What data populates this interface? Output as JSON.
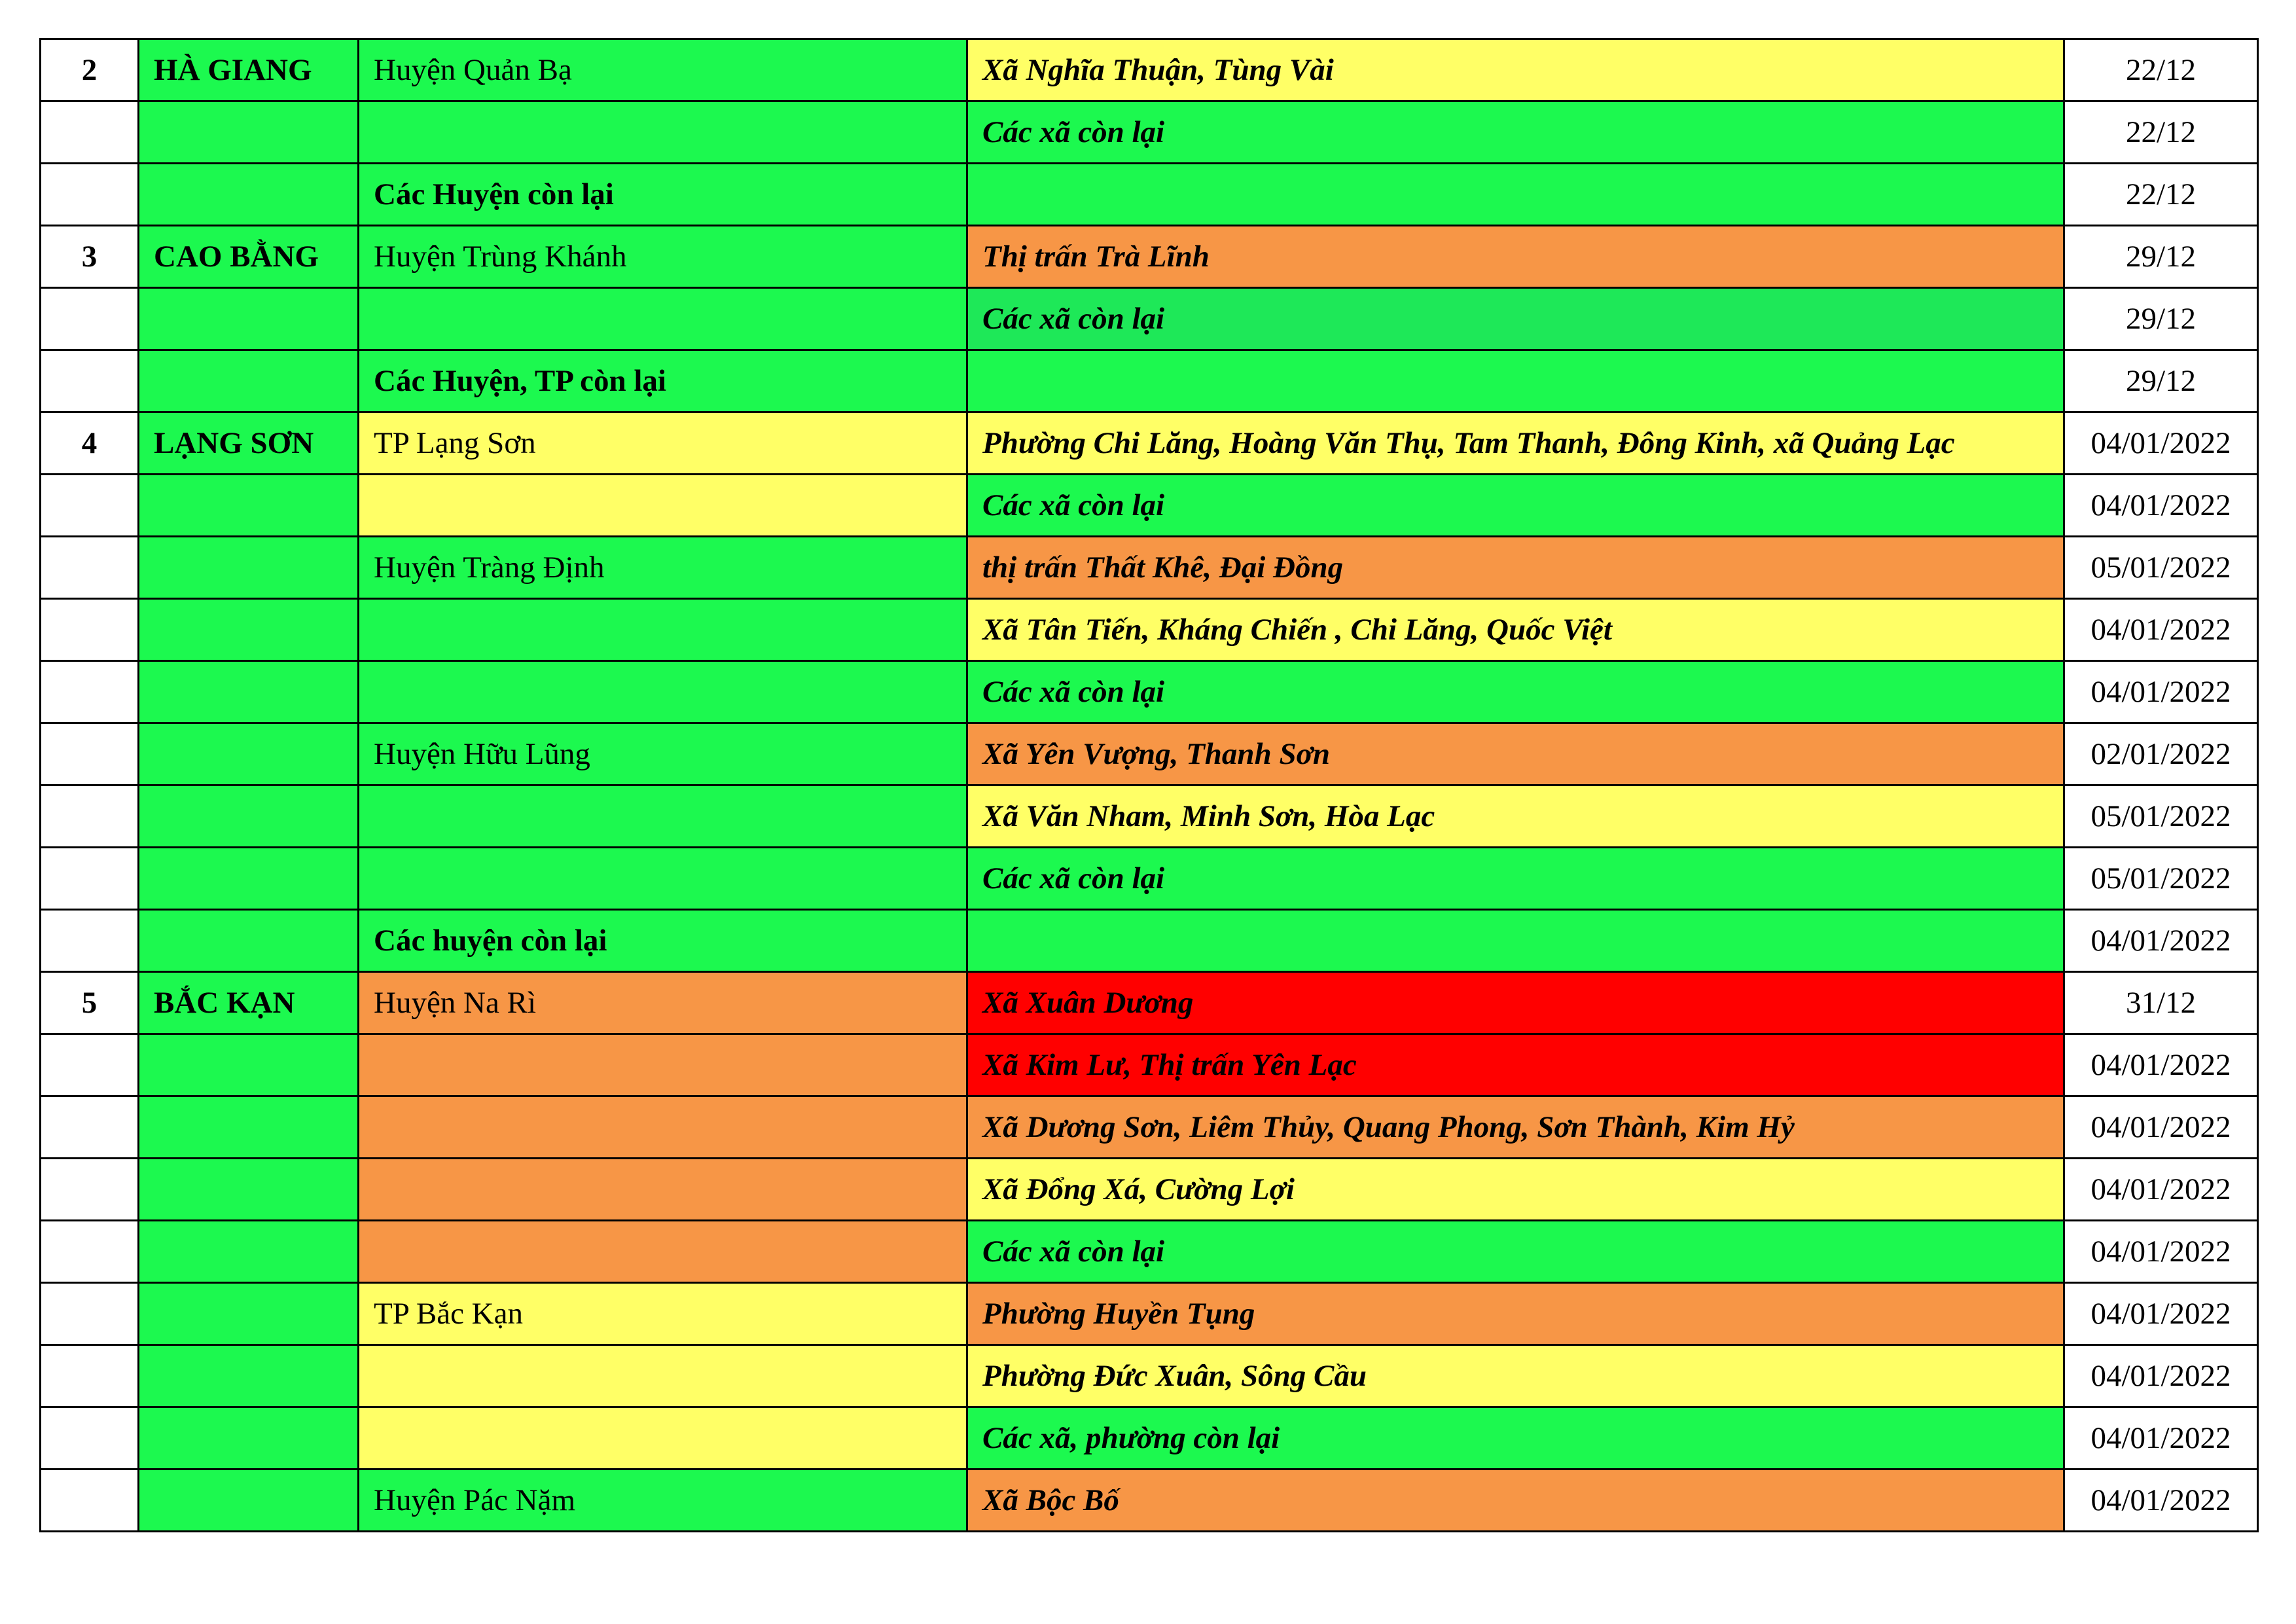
{
  "colors": {
    "green": "#1cf94f",
    "green2": "#1ee858",
    "yellow": "#ffff66",
    "orange": "#f79646",
    "red": "#ff0000",
    "white": "#ffffff"
  },
  "rows": [
    {
      "stt": "2",
      "province": "HÀ GIANG",
      "district": "Huyện Quản Bạ",
      "district_bold": false,
      "ward": "Xã Nghĩa Thuận, Tùng Vài",
      "date": "22/12",
      "pc": "green",
      "dc": "green",
      "wc": "yellow"
    },
    {
      "stt": "",
      "province": "",
      "district": "",
      "district_bold": false,
      "ward": "Các xã còn lại",
      "date": "22/12",
      "pc": "green",
      "dc": "green",
      "wc": "green"
    },
    {
      "stt": "",
      "province": "",
      "district": "Các Huyện còn lại",
      "district_bold": true,
      "ward": "",
      "date": "22/12",
      "pc": "green",
      "dc": "green",
      "wc": "green"
    },
    {
      "stt": "3",
      "province": "CAO BẰNG",
      "district": "Huyện Trùng Khánh",
      "district_bold": false,
      "ward": "Thị trấn Trà Lĩnh",
      "date": "29/12",
      "pc": "green",
      "dc": "green",
      "wc": "orange"
    },
    {
      "stt": "",
      "province": "",
      "district": "",
      "district_bold": false,
      "ward": "Các xã còn lại",
      "date": "29/12",
      "pc": "green",
      "dc": "green",
      "wc": "green2"
    },
    {
      "stt": "",
      "province": "",
      "district": "Các Huyện, TP còn lại",
      "district_bold": true,
      "ward": "",
      "date": "29/12",
      "pc": "green",
      "dc": "green",
      "wc": "green"
    },
    {
      "stt": "4",
      "province": "LẠNG SƠN",
      "district": "TP Lạng Sơn",
      "district_bold": false,
      "ward": "Phường Chi Lăng, Hoàng Văn Thụ, Tam Thanh, Đông Kinh, xã Quảng Lạc",
      "date": "04/01/2022",
      "pc": "green",
      "dc": "yellow",
      "wc": "yellow"
    },
    {
      "stt": "",
      "province": "",
      "district": "",
      "district_bold": false,
      "ward": "Các xã còn lại",
      "date": "04/01/2022",
      "pc": "green",
      "dc": "yellow",
      "wc": "green"
    },
    {
      "stt": "",
      "province": "",
      "district": "Huyện Tràng Định",
      "district_bold": false,
      "ward": "thị trấn Thất Khê, Đại Đồng",
      "date": "05/01/2022",
      "pc": "green",
      "dc": "green",
      "wc": "orange"
    },
    {
      "stt": "",
      "province": "",
      "district": "",
      "district_bold": false,
      "ward": "Xã Tân Tiến, Kháng Chiến , Chi Lăng, Quốc Việt",
      "date": "04/01/2022",
      "pc": "green",
      "dc": "green",
      "wc": "yellow"
    },
    {
      "stt": "",
      "province": "",
      "district": "",
      "district_bold": false,
      "ward": "Các xã còn lại",
      "date": "04/01/2022",
      "pc": "green",
      "dc": "green",
      "wc": "green"
    },
    {
      "stt": "",
      "province": "",
      "district": "Huyện Hữu Lũng",
      "district_bold": false,
      "ward": "Xã Yên Vượng, Thanh Sơn",
      "date": "02/01/2022",
      "pc": "green",
      "dc": "green",
      "wc": "orange"
    },
    {
      "stt": "",
      "province": "",
      "district": "",
      "district_bold": false,
      "ward": "Xã Văn Nham, Minh Sơn, Hòa Lạc",
      "date": "05/01/2022",
      "pc": "green",
      "dc": "green",
      "wc": "yellow"
    },
    {
      "stt": "",
      "province": "",
      "district": "",
      "district_bold": false,
      "ward": "Các xã còn lại",
      "date": "05/01/2022",
      "pc": "green",
      "dc": "green",
      "wc": "green"
    },
    {
      "stt": "",
      "province": "",
      "district": "Các huyện còn lại",
      "district_bold": true,
      "ward": "",
      "date": "04/01/2022",
      "pc": "green",
      "dc": "green",
      "wc": "green"
    },
    {
      "stt": "5",
      "province": "BẮC KẠN",
      "district": "Huyện Na Rì",
      "district_bold": false,
      "ward": "Xã Xuân Dương",
      "date": "31/12",
      "pc": "green",
      "dc": "orange",
      "wc": "red"
    },
    {
      "stt": "",
      "province": "",
      "district": "",
      "district_bold": false,
      "ward": "Xã Kim Lư, Thị trấn Yên Lạc",
      "date": "04/01/2022",
      "pc": "green",
      "dc": "orange",
      "wc": "red"
    },
    {
      "stt": "",
      "province": "",
      "district": "",
      "district_bold": false,
      "ward": "Xã Dương Sơn, Liêm Thủy, Quang Phong, Sơn Thành, Kim Hỷ",
      "date": "04/01/2022",
      "pc": "green",
      "dc": "orange",
      "wc": "orange"
    },
    {
      "stt": "",
      "province": "",
      "district": "",
      "district_bold": false,
      "ward": "Xã Đổng Xá, Cường Lợi",
      "date": "04/01/2022",
      "pc": "green",
      "dc": "orange",
      "wc": "yellow"
    },
    {
      "stt": "",
      "province": "",
      "district": "",
      "district_bold": false,
      "ward": "Các xã còn lại",
      "date": "04/01/2022",
      "pc": "green",
      "dc": "orange",
      "wc": "green"
    },
    {
      "stt": "",
      "province": "",
      "district": "TP Bắc Kạn",
      "district_bold": false,
      "ward": "Phường Huyền Tụng",
      "date": "04/01/2022",
      "pc": "green",
      "dc": "yellow",
      "wc": "orange"
    },
    {
      "stt": "",
      "province": "",
      "district": "",
      "district_bold": false,
      "ward": "Phường Đức Xuân, Sông Cầu",
      "date": "04/01/2022",
      "pc": "green",
      "dc": "yellow",
      "wc": "yellow"
    },
    {
      "stt": "",
      "province": "",
      "district": "",
      "district_bold": false,
      "ward": "Các xã, phường còn lại",
      "date": "04/01/2022",
      "pc": "green",
      "dc": "yellow",
      "wc": "green"
    },
    {
      "stt": "",
      "province": "",
      "district": "Huyện Pác Nặm",
      "district_bold": false,
      "ward": "Xã Bộc Bố",
      "date": "04/01/2022",
      "pc": "green",
      "dc": "green",
      "wc": "orange"
    }
  ]
}
